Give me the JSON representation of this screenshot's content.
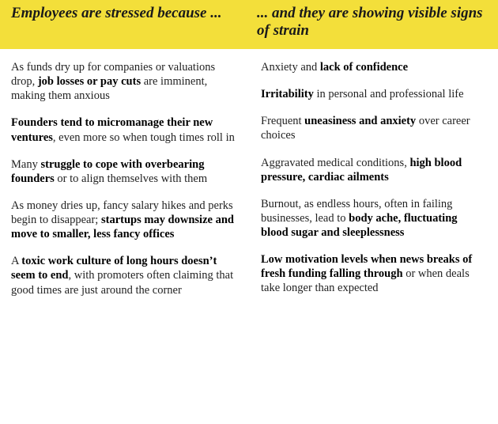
{
  "header": {
    "left": "Employees are stressed because ...",
    "right": "... and they are showing visible signs of strain"
  },
  "left": {
    "p1": {
      "a": "As funds dry up for companies or valuations drop, ",
      "b": "job losses or pay cuts",
      "c": " are imminent, making them anxious"
    },
    "p2": {
      "a": "",
      "b": "Founders tend to micromanage their new ventures",
      "c": ", even more so when tough times roll in"
    },
    "p3": {
      "a": "Many ",
      "b": "struggle to cope with overbearing founders",
      "c": " or to align themselves with them"
    },
    "p4": {
      "a": "As money dries up, fancy salary hikes and perks begin to disappear; ",
      "b": "startups may downsize and move to smaller, less fancy offices",
      "c": ""
    },
    "p5": {
      "a": "A ",
      "b": "toxic work culture of long hours doesn’t seem to end",
      "c": ", with promoters often claiming that good times are just around the corner"
    }
  },
  "right": {
    "p1": {
      "a": "Anxiety and ",
      "b": "lack of confidence",
      "c": ""
    },
    "p2": {
      "a": "",
      "b": "Irritability",
      "c": " in personal and professional life"
    },
    "p3": {
      "a": "Frequent ",
      "b": "uneasiness and anxiety",
      "c": " over career choices"
    },
    "p4": {
      "a": "Aggravated medical conditions, ",
      "b": "high blood pressure, cardiac ailments",
      "c": ""
    },
    "p5": {
      "a": "Burnout, as endless hours, often in failing businesses, lead to ",
      "b": "body ache, fluctuating blood sugar and sleeplessness",
      "c": ""
    },
    "p6": {
      "a": "",
      "b": "Low motivation levels when news breaks of fresh funding falling through",
      "c": " or when deals take longer than expected"
    }
  }
}
